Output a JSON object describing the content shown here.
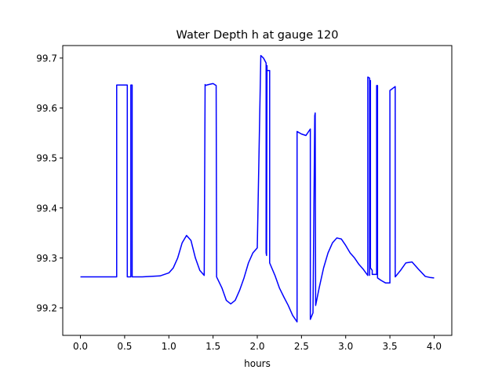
{
  "chart_data": {
    "type": "line",
    "title": "Water Depth h at gauge 120",
    "xlabel": "hours",
    "ylabel": "",
    "xlim": [
      -0.2,
      4.2
    ],
    "ylim": [
      99.145,
      99.725
    ],
    "grid": false,
    "x_ticks": [
      0.0,
      0.5,
      1.0,
      1.5,
      2.0,
      2.5,
      3.0,
      3.5,
      4.0
    ],
    "x_tick_labels": [
      "0.0",
      "0.5",
      "1.0",
      "1.5",
      "2.0",
      "2.5",
      "3.0",
      "3.5",
      "4.0"
    ],
    "y_ticks": [
      99.2,
      99.3,
      99.4,
      99.5,
      99.6,
      99.7
    ],
    "y_tick_labels": [
      "99.2",
      "99.3",
      "99.4",
      "99.5",
      "99.6",
      "99.7"
    ],
    "series": [
      {
        "color": "#0000ff",
        "x": [
          0.0,
          0.2,
          0.41,
          0.41,
          0.53,
          0.53,
          0.57,
          0.57,
          0.585,
          0.585,
          0.7,
          0.9,
          1.0,
          1.05,
          1.1,
          1.15,
          1.2,
          1.25,
          1.3,
          1.35,
          1.4,
          1.41,
          1.41,
          1.45,
          1.5,
          1.535,
          1.54,
          1.6,
          1.65,
          1.7,
          1.75,
          1.8,
          1.85,
          1.9,
          1.95,
          2.0,
          2.04,
          2.04,
          2.07,
          2.1,
          2.1,
          2.105,
          2.11,
          2.11,
          2.14,
          2.14,
          2.2,
          2.25,
          2.3,
          2.35,
          2.4,
          2.45,
          2.45,
          2.5,
          2.55,
          2.6,
          2.6,
          2.63,
          2.65,
          2.655,
          2.66,
          2.66,
          2.7,
          2.75,
          2.8,
          2.85,
          2.9,
          2.95,
          3.0,
          3.05,
          3.1,
          3.15,
          3.2,
          3.25,
          3.25,
          3.27,
          3.27,
          3.28,
          3.28,
          3.3,
          3.3,
          3.35,
          3.35,
          3.36,
          3.36,
          3.4,
          3.45,
          3.5,
          3.5,
          3.56,
          3.56,
          3.62,
          3.68,
          3.75,
          3.82,
          3.9,
          3.95,
          4.0
        ],
        "y": [
          99.262,
          99.262,
          99.262,
          99.646,
          99.646,
          99.262,
          99.262,
          99.646,
          99.646,
          99.262,
          99.262,
          99.264,
          99.27,
          99.28,
          99.3,
          99.33,
          99.345,
          99.335,
          99.3,
          99.275,
          99.265,
          99.647,
          99.645,
          99.647,
          99.649,
          99.645,
          99.262,
          99.24,
          99.215,
          99.208,
          99.215,
          99.235,
          99.26,
          99.29,
          99.31,
          99.32,
          99.705,
          99.705,
          99.7,
          99.69,
          99.31,
          99.305,
          99.685,
          99.675,
          99.675,
          99.29,
          99.265,
          99.24,
          99.222,
          99.205,
          99.185,
          99.172,
          99.553,
          99.548,
          99.545,
          99.558,
          99.177,
          99.19,
          99.585,
          99.59,
          99.21,
          99.205,
          99.24,
          99.28,
          99.31,
          99.33,
          99.34,
          99.338,
          99.325,
          99.31,
          99.3,
          99.287,
          99.277,
          99.265,
          99.662,
          99.66,
          99.265,
          99.655,
          99.28,
          99.275,
          99.267,
          99.267,
          99.645,
          99.645,
          99.26,
          99.255,
          99.25,
          99.25,
          99.635,
          99.643,
          99.262,
          99.275,
          99.29,
          99.292,
          99.278,
          99.263,
          99.261,
          99.26
        ]
      }
    ]
  }
}
